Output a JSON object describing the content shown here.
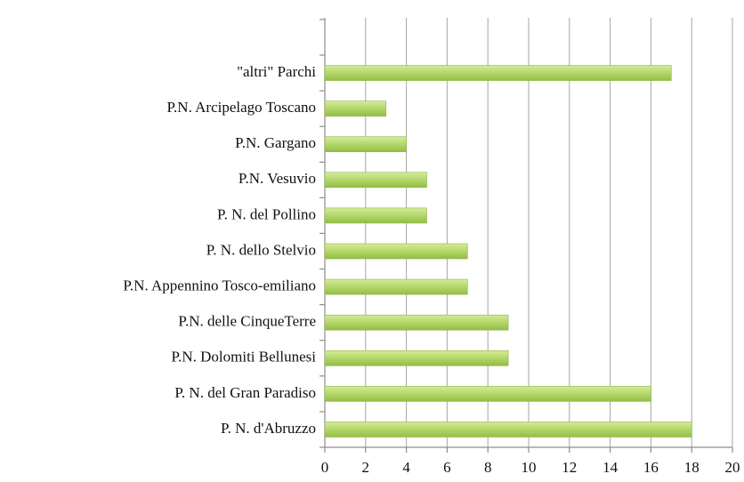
{
  "chart_data": {
    "type": "hbar",
    "categories": [
      "\"altri\" Parchi",
      "P.N. Arcipelago Toscano",
      "P.N. Gargano",
      "P.N. Vesuvio",
      "P. N. del Pollino",
      "P. N. dello Stelvio",
      "P.N. Appennino Tosco-emiliano",
      "P.N. delle CinqueTerre",
      "P.N. Dolomiti Bellunesi",
      "P. N. del Gran Paradiso",
      "P. N. d'Abruzzo"
    ],
    "values": [
      17,
      3,
      4,
      5,
      5,
      7,
      7,
      9,
      9,
      16,
      18
    ],
    "color": "#b3d66a",
    "xlim": [
      0,
      20
    ],
    "xticks": [
      0,
      2,
      4,
      6,
      8,
      10,
      12,
      14,
      16,
      18,
      20
    ],
    "grid": true
  }
}
